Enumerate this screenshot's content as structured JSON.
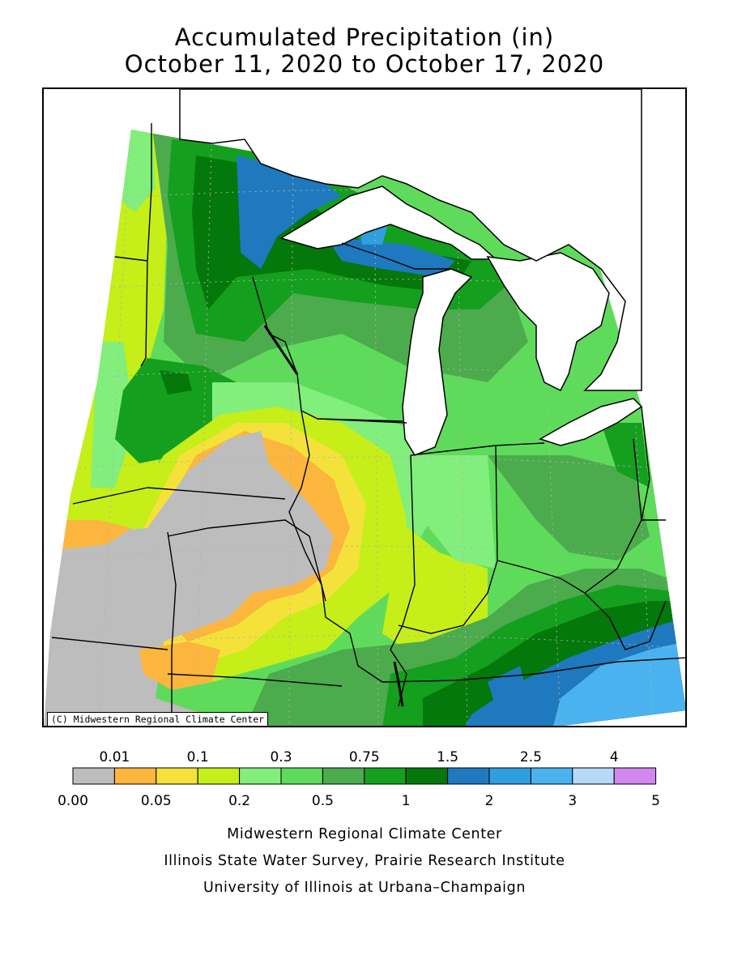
{
  "title": {
    "line1": "Accumulated Precipitation (in)",
    "line2": "October 11, 2020 to October 17, 2020"
  },
  "map": {
    "copyright": "(C) Midwestern Regional Climate Center",
    "region": "Upper Midwest / Great Lakes"
  },
  "legend": {
    "colors": [
      "#bdbdbd",
      "#fcb53d",
      "#f4e23b",
      "#c6ee19",
      "#82ee7c",
      "#5fdb5b",
      "#4cab4c",
      "#149f1e",
      "#04780a",
      "#1e79be",
      "#309fde",
      "#4ab2ef",
      "#b6d9f8",
      "#d188ee"
    ],
    "upper_labels": [
      {
        "text": "0.01",
        "edge": 1
      },
      {
        "text": "0.1",
        "edge": 3
      },
      {
        "text": "0.3",
        "edge": 5
      },
      {
        "text": "0.75",
        "edge": 7
      },
      {
        "text": "1.5",
        "edge": 9
      },
      {
        "text": "2.5",
        "edge": 11
      },
      {
        "text": "4",
        "edge": 13
      }
    ],
    "lower_labels": [
      {
        "text": "0.00",
        "edge": 0
      },
      {
        "text": "0.05",
        "edge": 2
      },
      {
        "text": "0.2",
        "edge": 4
      },
      {
        "text": "0.5",
        "edge": 6
      },
      {
        "text": "1",
        "edge": 8
      },
      {
        "text": "2",
        "edge": 10
      },
      {
        "text": "3",
        "edge": 12
      },
      {
        "text": "5",
        "edge": 14
      }
    ]
  },
  "credits": {
    "line1": "Midwestern Regional Climate Center",
    "line2": "Illinois State Water Survey, Prairie Research Institute",
    "line3": "University of Illinois at Urbana–Champaign"
  }
}
